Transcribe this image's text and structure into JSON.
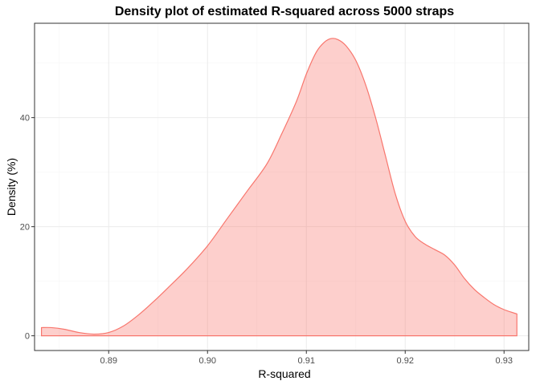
{
  "chart_data": {
    "type": "area",
    "title": "Density plot of estimated R-squared across 5000 straps",
    "xlabel": "R-squared",
    "ylabel": "Density (%)",
    "xlim": [
      0.8825,
      0.9325
    ],
    "ylim": [
      -2.7,
      57.3
    ],
    "x_ticks": [
      0.89,
      0.9,
      0.91,
      0.92,
      0.93
    ],
    "x_tick_labels": [
      "0.89",
      "0.90",
      "0.91",
      "0.92",
      "0.93"
    ],
    "y_ticks": [
      0,
      20,
      40
    ],
    "y_tick_labels": [
      "0",
      "20",
      "40"
    ],
    "grid": true,
    "fill_color": "#f8766d",
    "fill_opacity": 0.35,
    "line_color": "#f8766d",
    "series": [
      {
        "x": [
          0.8832,
          0.8842,
          0.8855,
          0.887,
          0.8885,
          0.89,
          0.8915,
          0.893,
          0.8945,
          0.896,
          0.898,
          0.9,
          0.902,
          0.904,
          0.906,
          0.9075,
          0.909,
          0.91,
          0.911,
          0.9118,
          0.9125,
          0.9132,
          0.914,
          0.915,
          0.916,
          0.917,
          0.918,
          0.919,
          0.92,
          0.921,
          0.922,
          0.923,
          0.924,
          0.925,
          0.926,
          0.927,
          0.928,
          0.929,
          0.93,
          0.9313
        ],
        "y": [
          1.5,
          1.5,
          1.2,
          0.6,
          0.3,
          0.6,
          1.8,
          3.8,
          6.2,
          8.8,
          12.4,
          16.5,
          21.5,
          26.5,
          31.5,
          37.0,
          43.0,
          48.0,
          52.0,
          53.8,
          54.5,
          54.3,
          53.2,
          50.5,
          46.0,
          40.0,
          33.0,
          26.0,
          21.0,
          18.2,
          16.8,
          15.8,
          14.8,
          13.0,
          10.5,
          8.5,
          7.0,
          5.7,
          4.8,
          4.0
        ]
      }
    ]
  }
}
